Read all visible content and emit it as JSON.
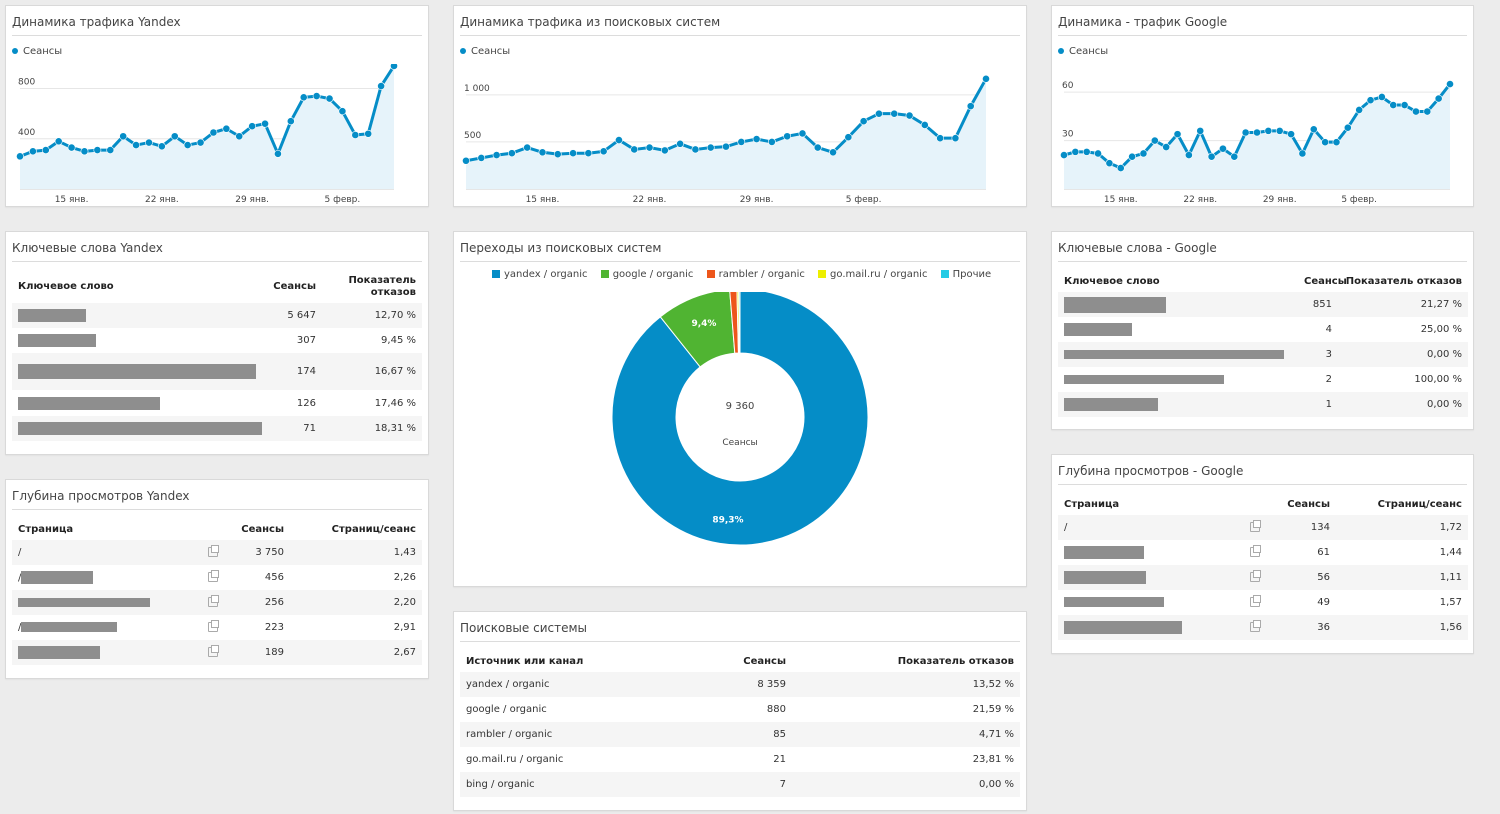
{
  "colors": {
    "series": "#058dc7",
    "fill": "#e6f3fa",
    "yandex": "#058dc7",
    "google": "#50b432",
    "rambler": "#ed561b",
    "gomail": "#edef00",
    "other": "#24cbe5"
  },
  "legend_label": "Сеансы",
  "external_icon": "external-link-icon",
  "w1": {
    "title": "Динамика трафика Yandex",
    "chart_data": {
      "type": "area",
      "series": [
        {
          "name": "Сеансы",
          "values": [
            260,
            300,
            310,
            380,
            330,
            300,
            310,
            310,
            420,
            350,
            370,
            340,
            420,
            350,
            370,
            450,
            480,
            420,
            500,
            520,
            280,
            540,
            730,
            740,
            720,
            620,
            430,
            440,
            820,
            980
          ]
        }
      ],
      "yticks": [
        {
          "label": "800",
          "value": 800
        },
        {
          "label": "400",
          "value": 400
        }
      ],
      "xticks": [
        {
          "label": "15 янв.",
          "index": 4
        },
        {
          "label": "22 янв.",
          "index": 11
        },
        {
          "label": "29 янв.",
          "index": 18
        },
        {
          "label": "5 февр.",
          "index": 25
        }
      ],
      "ylim": [
        0,
        900
      ]
    }
  },
  "w2": {
    "title": "Динамика трафика из поисковых систем",
    "chart_data": {
      "type": "area",
      "series": [
        {
          "name": "Сеансы",
          "values": [
            300,
            330,
            360,
            380,
            440,
            390,
            370,
            380,
            380,
            400,
            520,
            420,
            440,
            410,
            480,
            420,
            440,
            450,
            500,
            530,
            500,
            560,
            590,
            440,
            390,
            550,
            720,
            800,
            800,
            780,
            680,
            540,
            540,
            880,
            1170
          ]
        }
      ],
      "yticks": [
        {
          "label": "1 000",
          "value": 1000
        },
        {
          "label": "500",
          "value": 500
        }
      ],
      "xticks": [
        {
          "label": "15 янв.",
          "index": 5
        },
        {
          "label": "22 янв.",
          "index": 12
        },
        {
          "label": "29 янв.",
          "index": 19
        },
        {
          "label": "5 февр.",
          "index": 26
        }
      ],
      "ylim": [
        0,
        1200
      ]
    }
  },
  "w3": {
    "title": "Динамика - трафик Google",
    "chart_data": {
      "type": "area",
      "series": [
        {
          "name": "Сеансы",
          "values": [
            21,
            23,
            23,
            22,
            16,
            13,
            20,
            22,
            30,
            26,
            34,
            21,
            36,
            20,
            25,
            20,
            35,
            35,
            36,
            36,
            34,
            22,
            37,
            29,
            29,
            38,
            49,
            55,
            57,
            52,
            52,
            48,
            48,
            56,
            65
          ]
        }
      ],
      "yticks": [
        {
          "label": "60",
          "value": 60
        },
        {
          "label": "30",
          "value": 30
        }
      ],
      "xticks": [
        {
          "label": "15 янв.",
          "index": 5
        },
        {
          "label": "22 янв.",
          "index": 12
        },
        {
          "label": "29 янв.",
          "index": 19
        },
        {
          "label": "5 февр.",
          "index": 26
        }
      ],
      "ylim": [
        0,
        70
      ]
    }
  },
  "w4": {
    "title": "Ключевые слова Yandex",
    "h1": "Ключевое слово",
    "h2": "Сеансы",
    "h3": "Показатель отказов",
    "rows": [
      {
        "v1": "5 647",
        "v2": "12,70 %"
      },
      {
        "v1": "307",
        "v2": "9,45 %"
      },
      {
        "v1": "174",
        "v2": "16,67 %"
      },
      {
        "v1": "126",
        "v2": "17,46 %"
      },
      {
        "v1": "71",
        "v2": "18,31 %"
      }
    ]
  },
  "w5": {
    "title": "Глубина просмотров Yandex",
    "h1": "Страница",
    "h2": "Сеансы",
    "h3": "Страниц/сеанс",
    "rows": [
      {
        "page": "/",
        "v1": "3 750",
        "v2": "1,43"
      },
      {
        "page": "/",
        "v1": "456",
        "v2": "2,26"
      },
      {
        "page": "",
        "v1": "256",
        "v2": "2,20"
      },
      {
        "page": "/",
        "v1": "223",
        "v2": "2,91"
      },
      {
        "page": "",
        "v1": "189",
        "v2": "2,67"
      }
    ]
  },
  "w6": {
    "title": "Переходы из поисковых систем",
    "center_value": "9 360",
    "center_label": "Сеансы",
    "chart_data": {
      "type": "pie",
      "slices": [
        {
          "name": "yandex / organic",
          "value": 8359,
          "label": "89,3%"
        },
        {
          "name": "google / organic",
          "value": 880,
          "label": "9,4%"
        },
        {
          "name": "rambler / organic",
          "value": 85,
          "label": ""
        },
        {
          "name": "go.mail.ru / organic",
          "value": 21,
          "label": ""
        },
        {
          "name": "Прочие",
          "value": 15,
          "label": ""
        }
      ]
    }
  },
  "w7": {
    "title": "Поисковые системы",
    "h1": "Источник или канал",
    "h2": "Сеансы",
    "h3": "Показатель отказов",
    "rows": [
      {
        "src": "yandex / organic",
        "v1": "8 359",
        "v2": "13,52 %"
      },
      {
        "src": "google / organic",
        "v1": "880",
        "v2": "21,59 %"
      },
      {
        "src": "rambler / organic",
        "v1": "85",
        "v2": "4,71 %"
      },
      {
        "src": "go.mail.ru / organic",
        "v1": "21",
        "v2": "23,81 %"
      },
      {
        "src": "bing / organic",
        "v1": "7",
        "v2": "0,00 %"
      }
    ]
  },
  "w8": {
    "title": "Ключевые слова - Google",
    "h1": "Ключевое слово",
    "h2": "Сеансы",
    "h3": "Показатель отказов",
    "rows": [
      {
        "v1": "851",
        "v2": "21,27 %"
      },
      {
        "v1": "4",
        "v2": "25,00 %"
      },
      {
        "v1": "3",
        "v2": "0,00 %"
      },
      {
        "v1": "2",
        "v2": "100,00 %"
      },
      {
        "v1": "1",
        "v2": "0,00 %"
      }
    ]
  },
  "w9": {
    "title": "Глубина просмотров - Google",
    "h1": "Страница",
    "h2": "Сеансы",
    "h3": "Страниц/сеанс",
    "rows": [
      {
        "page": "/",
        "v1": "134",
        "v2": "1,72"
      },
      {
        "page": "",
        "v1": "61",
        "v2": "1,44"
      },
      {
        "page": "",
        "v1": "56",
        "v2": "1,11"
      },
      {
        "page": "",
        "v1": "49",
        "v2": "1,57"
      },
      {
        "page": "",
        "v1": "36",
        "v2": "1,56"
      }
    ]
  }
}
